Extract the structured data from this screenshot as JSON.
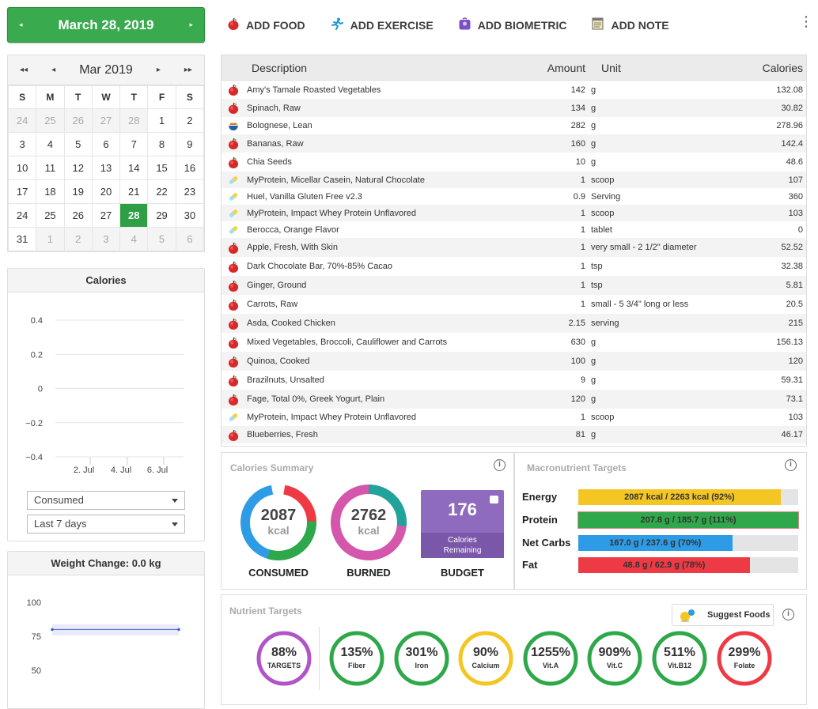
{
  "date_bar": {
    "date": "March 28, 2019",
    "prev": "◂",
    "next": "▸"
  },
  "actions": [
    {
      "label": "ADD FOOD",
      "icon": "apple-icon"
    },
    {
      "label": "ADD EXERCISE",
      "icon": "runner-icon"
    },
    {
      "label": "ADD BIOMETRIC",
      "icon": "scale-icon"
    },
    {
      "label": "ADD NOTE",
      "icon": "note-icon"
    }
  ],
  "calendar": {
    "month": "Mar 2019",
    "nav": {
      "prev_year": "◂◂",
      "prev": "◂",
      "next": "▸",
      "next_year": "▸▸"
    },
    "weekdays": [
      "S",
      "M",
      "T",
      "W",
      "T",
      "F",
      "S"
    ],
    "weeks": [
      [
        "24",
        "25",
        "26",
        "27",
        "28",
        "1",
        "2"
      ],
      [
        "3",
        "4",
        "5",
        "6",
        "7",
        "8",
        "9"
      ],
      [
        "10",
        "11",
        "12",
        "13",
        "14",
        "15",
        "16"
      ],
      [
        "17",
        "18",
        "19",
        "20",
        "21",
        "22",
        "23"
      ],
      [
        "24",
        "25",
        "26",
        "27",
        "28",
        "29",
        "30"
      ],
      [
        "31",
        "1",
        "2",
        "3",
        "4",
        "5",
        "6"
      ]
    ],
    "selected": "28"
  },
  "calories_panel": {
    "title": "Calories",
    "select_metric": "Consumed",
    "select_range": "Last 7 days"
  },
  "chart_data": [
    {
      "type": "line",
      "title": "Calories",
      "y_ticks": [
        "0.4",
        "0.2",
        "0",
        "−0.2",
        "−0.4"
      ],
      "x_ticks": [
        "2. Jul",
        "4. Jul",
        "6. Jul"
      ],
      "ylim": [
        -0.4,
        0.4
      ],
      "series": []
    },
    {
      "type": "line",
      "title": "Weight Change: 0.0 kg",
      "y_ticks": [
        "100",
        "75",
        "50"
      ],
      "series": [
        {
          "values": [
            80,
            80
          ]
        }
      ]
    }
  ],
  "weight_panel": {
    "title": "Weight Change: 0.0 kg"
  },
  "diary": {
    "headers": {
      "description": "Description",
      "amount": "Amount",
      "unit": "Unit",
      "calories": "Calories"
    },
    "rows": [
      {
        "icon": "apple-icon",
        "desc": "Amy's Tamale Roasted Vegetables",
        "amount": "142",
        "unit": "g",
        "cal": "132.08"
      },
      {
        "icon": "apple-icon",
        "desc": "Spinach, Raw",
        "amount": "134",
        "unit": "g",
        "cal": "30.82"
      },
      {
        "icon": "bowl-icon",
        "desc": "Bolognese, Lean",
        "amount": "282",
        "unit": "g",
        "cal": "278.96"
      },
      {
        "icon": "apple-icon",
        "desc": "Bananas, Raw",
        "amount": "160",
        "unit": "g",
        "cal": "142.4"
      },
      {
        "icon": "apple-icon",
        "desc": "Chia Seeds",
        "amount": "10",
        "unit": "g",
        "cal": "48.6"
      },
      {
        "icon": "pill-icon",
        "desc": "MyProtein, Micellar Casein, Natural Chocolate",
        "amount": "1",
        "unit": "scoop",
        "cal": "107"
      },
      {
        "icon": "pill-icon",
        "desc": "Huel, Vanilla Gluten Free v2.3",
        "amount": "0.9",
        "unit": "Serving",
        "cal": "360"
      },
      {
        "icon": "pill-icon",
        "desc": "MyProtein, Impact Whey Protein Unflavored",
        "amount": "1",
        "unit": "scoop",
        "cal": "103"
      },
      {
        "icon": "pill-icon",
        "desc": "Berocca, Orange Flavor",
        "amount": "1",
        "unit": "tablet",
        "cal": "0"
      },
      {
        "icon": "apple-icon",
        "desc": "Apple, Fresh, With Skin",
        "amount": "1",
        "unit": "very small - 2 1/2\" diameter",
        "cal": "52.52"
      },
      {
        "icon": "apple-icon",
        "desc": "Dark Chocolate Bar, 70%-85% Cacao",
        "amount": "1",
        "unit": "tsp",
        "cal": "32.38"
      },
      {
        "icon": "apple-icon",
        "desc": "Ginger, Ground",
        "amount": "1",
        "unit": "tsp",
        "cal": "5.81"
      },
      {
        "icon": "apple-icon",
        "desc": "Carrots, Raw",
        "amount": "1",
        "unit": "small - 5 3/4\" long or less",
        "cal": "20.5"
      },
      {
        "icon": "apple-icon",
        "desc": "Asda, Cooked Chicken",
        "amount": "2.15",
        "unit": "serving",
        "cal": "215"
      },
      {
        "icon": "apple-icon",
        "desc": "Mixed Vegetables, Broccoli, Cauliflower and Carrots",
        "amount": "630",
        "unit": "g",
        "cal": "156.13"
      },
      {
        "icon": "apple-icon",
        "desc": "Quinoa, Cooked",
        "amount": "100",
        "unit": "g",
        "cal": "120"
      },
      {
        "icon": "apple-icon",
        "desc": "Brazilnuts, Unsalted",
        "amount": "9",
        "unit": "g",
        "cal": "59.31"
      },
      {
        "icon": "apple-icon",
        "desc": "Fage, Total 0%, Greek Yogurt, Plain",
        "amount": "120",
        "unit": "g",
        "cal": "73.1"
      },
      {
        "icon": "pill-icon",
        "desc": "MyProtein, Impact Whey Protein Unflavored",
        "amount": "1",
        "unit": "scoop",
        "cal": "103"
      },
      {
        "icon": "apple-icon",
        "desc": "Blueberries, Fresh",
        "amount": "81",
        "unit": "g",
        "cal": "46.17"
      }
    ]
  },
  "calories_summary": {
    "title": "Calories Summary",
    "consumed": {
      "value": "2087",
      "unit": "kcal",
      "label": "CONSUMED"
    },
    "burned": {
      "value": "2762",
      "unit": "kcal",
      "label": "BURNED"
    },
    "budget": {
      "value": "176",
      "sub": "Calories Remaining",
      "label": "BUDGET"
    }
  },
  "macros": {
    "title": "Macronutrient Targets",
    "items": [
      {
        "name": "Energy",
        "text": "2087 kcal / 2263 kcal (92%)",
        "pct": 92,
        "color": "#f3c623"
      },
      {
        "name": "Protein",
        "text": "207.8 g / 185.7 g (111%)",
        "pct": 100,
        "color": "#2ea84a"
      },
      {
        "name": "Net Carbs",
        "text": "167.0 g / 237.6 g (70%)",
        "pct": 70,
        "color": "#2d9be5"
      },
      {
        "name": "Fat",
        "text": "48.8 g / 62.9 g (78%)",
        "pct": 78,
        "color": "#ee3a45"
      }
    ]
  },
  "nutrients": {
    "title": "Nutrient Targets",
    "suggest": "Suggest Foods",
    "items": [
      {
        "pct": "88%",
        "name": "TARGETS",
        "color": "#b055c8"
      },
      {
        "pct": "135%",
        "name": "Fiber",
        "color": "#2ea84a"
      },
      {
        "pct": "301%",
        "name": "Iron",
        "color": "#2ea84a"
      },
      {
        "pct": "90%",
        "name": "Calcium",
        "color": "#f3c623"
      },
      {
        "pct": "1255%",
        "name": "Vit.A",
        "color": "#2ea84a"
      },
      {
        "pct": "909%",
        "name": "Vit.C",
        "color": "#2ea84a"
      },
      {
        "pct": "511%",
        "name": "Vit.B12",
        "color": "#2ea84a"
      },
      {
        "pct": "299%",
        "name": "Folate",
        "color": "#ee3a45"
      }
    ]
  }
}
